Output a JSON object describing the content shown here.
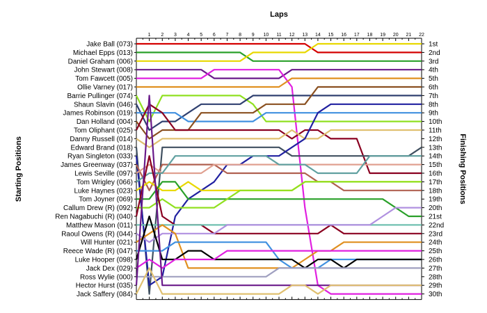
{
  "chart_data": {
    "type": "line",
    "title": "Laps",
    "ylabel_left": "Starting Positions",
    "ylabel_right": "Finishing Positions",
    "laps": [
      1,
      2,
      3,
      4,
      5,
      6,
      7,
      8,
      9,
      10,
      11,
      12,
      13,
      14,
      15,
      16,
      17,
      18,
      19,
      20,
      21,
      22
    ],
    "drivers": [
      "Jake Ball (073)",
      "Michael Epps (013)",
      "Daniel Graham (006)",
      "John Stewart (008)",
      "Tom Fawcett (005)",
      "Ollie Varney (017)",
      "Barrie Pullinger (074)",
      "Shaun Slavin (046)",
      "James Robinson (019)",
      "Dan Holland (004)",
      "Tom Oliphant (025)",
      "Danny Russell (014)",
      "Edward Brand (018)",
      "Ryan Singleton (033)",
      "James Greenway (037)",
      "Lewis Seville (097)",
      "Tom Wrigley (066)",
      "Luke Haynes (023)",
      "Tom Joyner (069)",
      "Callum Drew (R) (092)",
      "Ren Nagabuchi  (R) (040)",
      "Matthew Mason (011)",
      "Raoul Owens  (R) (044)",
      "Will Hunter (021)",
      "Reece Wade    (R) (047)",
      "Luke Hooper (098)",
      "Jack Dex (029)",
      "Ross Wylie (000)",
      "Hector Hurst (035)",
      "Jack Saffery (084)"
    ],
    "finishing_positions": [
      "1st",
      "2nd",
      "3rd",
      "4th",
      "5th",
      "6th",
      "7th",
      "8th",
      "9th",
      "10th",
      "11th",
      "12th",
      "13th",
      "14th",
      "15th",
      "16th",
      "17th",
      "18th",
      "19th",
      "20th",
      "21st",
      "22nd",
      "23rd",
      "24th",
      "25th",
      "26th",
      "27th",
      "28th",
      "29th",
      "30th"
    ],
    "series": [
      {
        "color": "#d40000",
        "values": [
          1,
          1,
          1,
          1,
          1,
          1,
          1,
          1,
          1,
          1,
          1,
          1,
          1,
          2,
          2,
          2,
          2,
          2,
          2,
          2,
          2,
          2
        ]
      },
      {
        "color": "#2aa02a",
        "values": [
          2,
          2,
          2,
          2,
          2,
          2,
          2,
          2,
          3,
          3,
          3,
          3,
          3,
          3,
          3,
          3,
          3,
          3,
          3,
          3,
          3,
          3
        ]
      },
      {
        "color": "#e8d800",
        "values": [
          3,
          3,
          3,
          3,
          3,
          3,
          3,
          3,
          2,
          2,
          2,
          2,
          2,
          1,
          1,
          1,
          1,
          1,
          1,
          1,
          1,
          1
        ]
      },
      {
        "color": "#6a1a8a",
        "values": [
          4,
          4,
          4,
          4,
          4,
          5,
          5,
          5,
          5,
          5,
          5,
          4,
          4,
          4,
          4,
          4,
          4,
          4,
          4,
          4,
          4,
          4
        ]
      },
      {
        "color": "#e020e0",
        "values": [
          5,
          5,
          5,
          5,
          5,
          4,
          4,
          4,
          4,
          4,
          4,
          6,
          20,
          29,
          30,
          30,
          30,
          30,
          30,
          30,
          30,
          30
        ]
      },
      {
        "color": "#e09020",
        "values": [
          6,
          6,
          6,
          6,
          6,
          6,
          6,
          6,
          6,
          6,
          6,
          5,
          5,
          5,
          5,
          5,
          5,
          5,
          5,
          5,
          5,
          5
        ]
      },
      {
        "color": "#90e020",
        "values": [
          10,
          7,
          7,
          7,
          7,
          7,
          7,
          7,
          8,
          10,
          10,
          10,
          10,
          10,
          10,
          10,
          10,
          10,
          10,
          10,
          10,
          10
        ]
      },
      {
        "color": "#304070",
        "values": [
          11,
          10,
          10,
          9,
          8,
          8,
          8,
          8,
          7,
          7,
          7,
          7,
          7,
          7,
          7,
          7,
          7,
          7,
          7,
          7,
          7,
          7
        ]
      },
      {
        "color": "#4090e0",
        "values": [
          9,
          9,
          9,
          10,
          10,
          10,
          10,
          10,
          10,
          9,
          9,
          9,
          9,
          9,
          9,
          9,
          9,
          9,
          9,
          9,
          9,
          9
        ]
      },
      {
        "color": "#8a5020",
        "values": [
          12,
          11,
          11,
          11,
          9,
          9,
          9,
          9,
          9,
          8,
          8,
          8,
          8,
          6,
          6,
          6,
          6,
          6,
          6,
          6,
          6,
          6
        ]
      },
      {
        "color": "#8a0020",
        "values": [
          8,
          9,
          11,
          11,
          11,
          11,
          11,
          11,
          11,
          11,
          11,
          12,
          11,
          11,
          12,
          12,
          12,
          16,
          16,
          16,
          16,
          16
        ]
      },
      {
        "color": "#e0c070",
        "values": [
          13,
          12,
          12,
          12,
          12,
          12,
          12,
          12,
          12,
          12,
          12,
          11,
          12,
          12,
          11,
          11,
          11,
          11,
          11,
          11,
          11,
          11
        ]
      },
      {
        "color": "#405060",
        "values": [
          30,
          13,
          13,
          13,
          13,
          13,
          13,
          13,
          13,
          13,
          13,
          14,
          14,
          14,
          14,
          14,
          14,
          14,
          14,
          14,
          14,
          13
        ]
      },
      {
        "color": "#2020a0",
        "values": [
          29,
          28,
          21,
          19,
          18,
          17,
          15,
          15,
          14,
          14,
          14,
          13,
          12,
          9,
          8,
          8,
          8,
          8,
          8,
          8,
          8,
          8
        ]
      },
      {
        "color": "#b06050",
        "values": [
          18,
          15,
          15,
          15,
          15,
          15,
          16,
          16,
          16,
          16,
          16,
          16,
          16,
          17,
          17,
          18,
          18,
          18,
          18,
          18,
          18,
          18
        ]
      },
      {
        "color": "#e0a090",
        "values": [
          15,
          16,
          16,
          16,
          16,
          15,
          15,
          15,
          15,
          15,
          15,
          15,
          15,
          15,
          15,
          15,
          15,
          15,
          15,
          15,
          15,
          15
        ]
      },
      {
        "color": "#60a0a0",
        "values": [
          16,
          16,
          14,
          14,
          14,
          14,
          14,
          14,
          14,
          14,
          15,
          15,
          15,
          16,
          16,
          16,
          16,
          14,
          14,
          14,
          14,
          14
        ]
      },
      {
        "color": "#e8d800",
        "values": [
          17,
          18,
          18,
          17,
          18,
          18,
          18,
          18,
          18,
          18,
          18,
          18,
          17,
          17,
          17,
          17,
          17,
          17,
          17,
          17,
          17,
          17
        ]
      },
      {
        "color": "#2aa02a",
        "values": [
          19,
          17,
          17,
          19,
          19,
          19,
          19,
          19,
          19,
          19,
          19,
          19,
          19,
          19,
          19,
          19,
          19,
          19,
          19,
          20,
          21,
          21
        ]
      },
      {
        "color": "#90e020",
        "values": [
          20,
          19,
          20,
          20,
          20,
          20,
          19,
          18,
          18,
          18,
          18,
          18,
          17,
          17,
          17,
          17,
          17,
          17,
          17,
          17,
          17,
          17
        ]
      },
      {
        "color": "#8a0020",
        "values": [
          14,
          21,
          22,
          22,
          22,
          23,
          23,
          23,
          23,
          23,
          23,
          23,
          23,
          23,
          22,
          23,
          23,
          23,
          23,
          23,
          23,
          23
        ]
      },
      {
        "color": "#70c0b0",
        "values": [
          22,
          22,
          22,
          22,
          22,
          22,
          22,
          22,
          22,
          22,
          22,
          22,
          22,
          22,
          22,
          22,
          22,
          22,
          22,
          22,
          22,
          22
        ]
      },
      {
        "color": "#b090e0",
        "values": [
          24,
          23,
          23,
          23,
          23,
          23,
          22,
          22,
          22,
          22,
          22,
          22,
          22,
          22,
          22,
          22,
          22,
          22,
          21,
          20,
          20,
          20
        ]
      },
      {
        "color": "#e09020",
        "values": [
          23,
          22,
          23,
          27,
          27,
          27,
          27,
          27,
          27,
          27,
          27,
          27,
          26,
          25,
          25,
          24,
          24,
          24,
          24,
          24,
          24,
          24
        ]
      },
      {
        "color": "#4090e0",
        "values": [
          25,
          25,
          24,
          24,
          24,
          24,
          24,
          24,
          24,
          24,
          26,
          27,
          27,
          27,
          26,
          26,
          26,
          26,
          26,
          26,
          26,
          26
        ]
      },
      {
        "color": "#000000",
        "values": [
          21,
          26,
          26,
          25,
          25,
          26,
          26,
          26,
          26,
          26,
          26,
          26,
          27,
          26,
          26,
          27,
          26,
          26,
          26,
          26,
          26,
          26
        ]
      },
      {
        "color": "#e020e0",
        "values": [
          26,
          27,
          26,
          26,
          26,
          26,
          25,
          25,
          25,
          25,
          25,
          25,
          25,
          25,
          25,
          25,
          25,
          25,
          25,
          25,
          25,
          25
        ]
      },
      {
        "color": "#a0a0c0",
        "values": [
          28,
          28,
          28,
          28,
          28,
          28,
          28,
          28,
          28,
          28,
          27,
          27,
          27,
          27,
          27,
          27,
          27,
          27,
          27,
          27,
          27,
          27
        ]
      },
      {
        "color": "#6a1a8a",
        "values": [
          7,
          29,
          29,
          29,
          29,
          29,
          29,
          29,
          29,
          29,
          29,
          29,
          29,
          29,
          29,
          29,
          29,
          29,
          29,
          29,
          29,
          29
        ]
      },
      {
        "color": "#e0c070",
        "values": [
          27,
          30,
          30,
          30,
          30,
          30,
          30,
          30,
          30,
          30,
          30,
          29,
          29,
          30,
          29,
          29,
          29,
          29,
          29,
          29,
          29,
          29
        ]
      }
    ]
  }
}
